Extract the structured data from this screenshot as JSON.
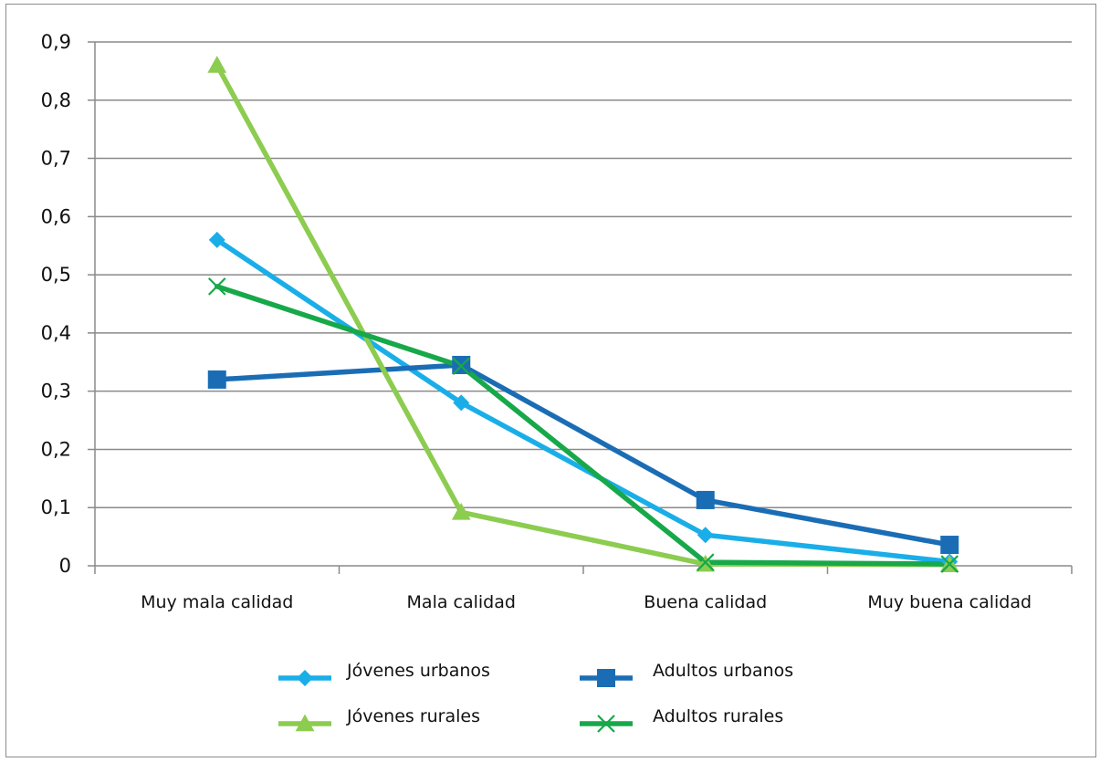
{
  "chart_data": {
    "type": "line",
    "categories": [
      "Muy mala calidad",
      "Mala calidad",
      "Buena calidad",
      "Muy buena calidad"
    ],
    "ylim": [
      0,
      0.9
    ],
    "yticks": [
      "0",
      "0,1",
      "0,2",
      "0,3",
      "0,4",
      "0,5",
      "0,6",
      "0,7",
      "0,8",
      "0,9"
    ],
    "grid": true,
    "legend_position": "bottom",
    "series": [
      {
        "name": "Jóvenes urbanos",
        "values": [
          0.56,
          0.28,
          0.053,
          0.007
        ],
        "color": "#1aaee8",
        "marker": "diamond"
      },
      {
        "name": "Adultos urbanos",
        "values": [
          0.32,
          0.345,
          0.113,
          0.036
        ],
        "color": "#1a6db5",
        "marker": "square"
      },
      {
        "name": "Jóvenes rurales",
        "values": [
          0.86,
          0.092,
          0.003,
          0.002
        ],
        "color": "#8ccc4f",
        "marker": "triangle"
      },
      {
        "name": "Adultos rurales",
        "values": [
          0.48,
          0.343,
          0.006,
          0.003
        ],
        "color": "#17a84a",
        "marker": "x"
      }
    ]
  }
}
